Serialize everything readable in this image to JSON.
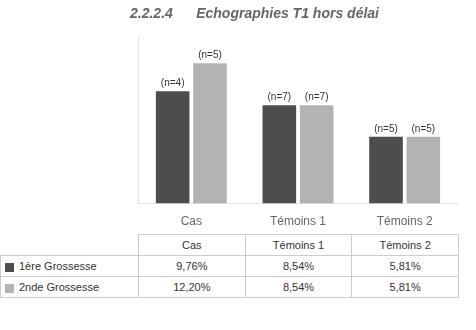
{
  "chart_data": {
    "type": "bar",
    "title": "2.2.2.4      Echographies T1 hors délai",
    "categories": [
      "Cas",
      "Témoins 1",
      "Témoins 2"
    ],
    "series": [
      {
        "name": "1ère Grossesse",
        "color": "#4d4d4d",
        "values": [
          9.76,
          8.54,
          5.81
        ],
        "annotations": [
          "(n=4)",
          "(n=7)",
          "(n=5)"
        ]
      },
      {
        "name": "2nde Grossesse",
        "color": "#b3b3b3",
        "values": [
          12.2,
          8.54,
          5.81
        ],
        "annotations": [
          "(n=5)",
          "(n=7)",
          "(n=5)"
        ]
      }
    ],
    "ylim": [
      0,
      14.5
    ],
    "grid": false,
    "tick_labels": "x",
    "table": {
      "columns": [
        "Cas",
        "Témoins 1",
        "Témoins 2"
      ],
      "cells": [
        [
          "9,76%",
          "8,54%",
          "5,81%"
        ],
        [
          "12,20%",
          "8,54%",
          "5,81%"
        ]
      ]
    }
  }
}
